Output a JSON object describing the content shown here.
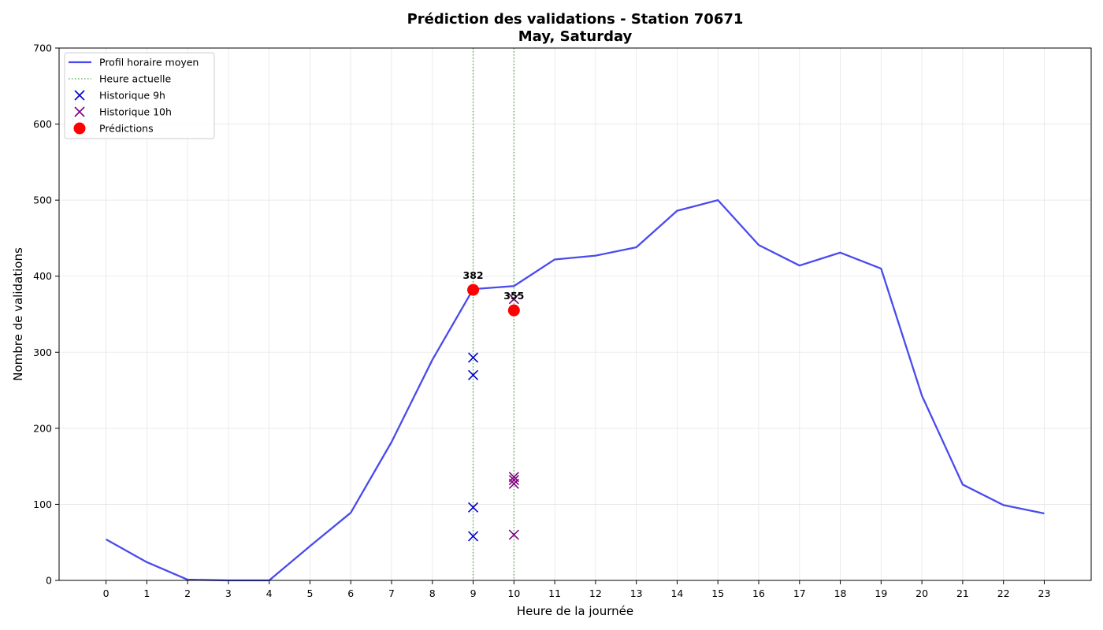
{
  "chart_data": {
    "type": "line",
    "title": "Prédiction des validations - Station 70671",
    "subtitle": "May, Saturday",
    "xlabel": "Heure de la journée",
    "ylabel": "Nombre de validations",
    "xlim": [
      -1.15,
      24.15
    ],
    "ylim": [
      0,
      700
    ],
    "xticks": [
      0,
      1,
      2,
      3,
      4,
      5,
      6,
      7,
      8,
      9,
      10,
      11,
      12,
      13,
      14,
      15,
      16,
      17,
      18,
      19,
      20,
      21,
      22,
      23
    ],
    "yticks": [
      0,
      100,
      200,
      300,
      400,
      500,
      600,
      700
    ],
    "grid": true,
    "legend_position": "top-left",
    "colors": {
      "profile": "#4a4aee",
      "current_hour": "#5cb85c",
      "hist9": "#0000cc",
      "hist10": "#800080",
      "pred": "#ff0000"
    },
    "series": [
      {
        "name": "Profil horaire moyen",
        "kind": "line",
        "x": [
          0,
          1,
          2,
          3,
          4,
          5,
          6,
          7,
          8,
          9,
          10,
          11,
          12,
          13,
          14,
          15,
          16,
          17,
          18,
          19,
          20,
          21,
          22,
          23
        ],
        "values": [
          54,
          24,
          1,
          0,
          0,
          45,
          89,
          182,
          290,
          383,
          387,
          422,
          427,
          438,
          486,
          500,
          441,
          414,
          431,
          410,
          243,
          126,
          99,
          88
        ]
      },
      {
        "name": "Heure actuelle",
        "kind": "vline",
        "x": [
          9,
          10
        ]
      },
      {
        "name": "Historique 9h",
        "kind": "scatter-x",
        "x": [
          9,
          9,
          9,
          9
        ],
        "values": [
          293,
          270,
          96,
          58
        ]
      },
      {
        "name": "Historique 10h",
        "kind": "scatter-x",
        "x": [
          10,
          10,
          10,
          10,
          10
        ],
        "values": [
          370,
          136,
          132,
          127,
          60
        ]
      },
      {
        "name": "Prédictions",
        "kind": "scatter-dot",
        "x": [
          9,
          10
        ],
        "values": [
          382,
          355
        ],
        "labels": [
          "382",
          "355"
        ]
      }
    ]
  }
}
